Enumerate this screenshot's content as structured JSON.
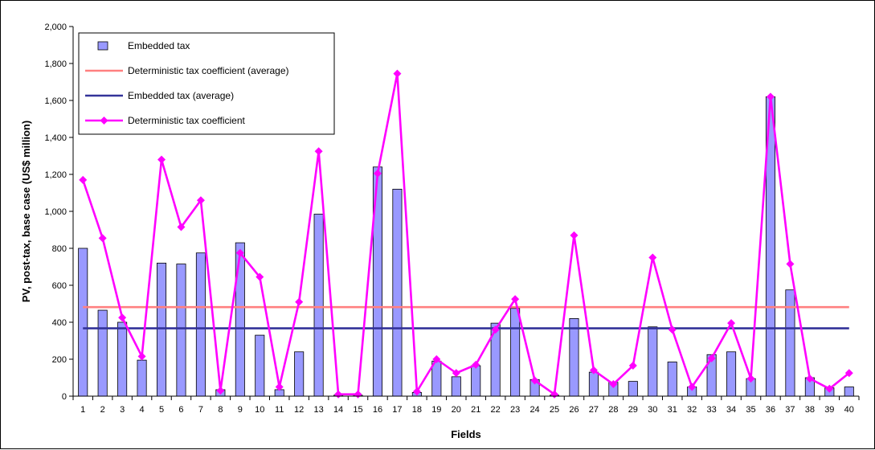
{
  "chart_data": {
    "type": "bar",
    "xlabel": "Fields",
    "ylabel": "PV, post-tax, base case (US$ million)",
    "ylim": [
      0,
      2000
    ],
    "ytick_step": 200,
    "grid": false,
    "legend_position": "top-left",
    "categories": [
      "1",
      "2",
      "3",
      "4",
      "5",
      "6",
      "7",
      "8",
      "9",
      "10",
      "11",
      "12",
      "13",
      "14",
      "15",
      "16",
      "17",
      "18",
      "19",
      "20",
      "21",
      "22",
      "23",
      "24",
      "25",
      "26",
      "27",
      "28",
      "29",
      "30",
      "31",
      "32",
      "33",
      "34",
      "35",
      "36",
      "37",
      "38",
      "39",
      "40"
    ],
    "series": [
      {
        "name": "Embedded tax",
        "kind": "bar",
        "color": "#9999ff",
        "values": [
          800,
          465,
          400,
          195,
          720,
          715,
          775,
          35,
          830,
          330,
          35,
          240,
          985,
          5,
          5,
          1240,
          1120,
          20,
          190,
          105,
          165,
          395,
          475,
          90,
          5,
          420,
          130,
          75,
          80,
          375,
          185,
          50,
          225,
          240,
          95,
          1620,
          575,
          100,
          45,
          50
        ]
      },
      {
        "name": "Deterministic tax coefficient (average)",
        "kind": "hline",
        "color": "#ff8080",
        "value": 482
      },
      {
        "name": "Embedded tax (average)",
        "kind": "hline",
        "color": "#333399",
        "value": 367
      },
      {
        "name": "Deterministic tax coefficient",
        "kind": "line",
        "color": "#ff00ff",
        "values": [
          1170,
          855,
          425,
          215,
          1280,
          915,
          1060,
          30,
          775,
          645,
          50,
          510,
          1325,
          10,
          10,
          1205,
          1745,
          25,
          200,
          125,
          170,
          360,
          525,
          85,
          10,
          870,
          140,
          65,
          165,
          750,
          360,
          50,
          205,
          395,
          95,
          1620,
          715,
          95,
          40,
          125
        ]
      }
    ]
  }
}
